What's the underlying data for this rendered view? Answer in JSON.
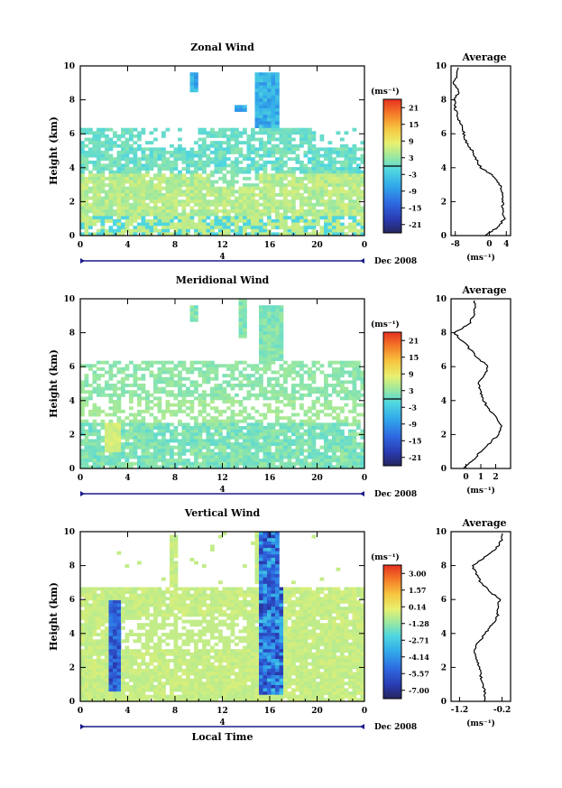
{
  "chart_data": [
    {
      "type": "heatmap",
      "title": "Zonal Wind",
      "ylabel": "Height (km)",
      "xlim": [
        0,
        24
      ],
      "ylim": [
        0,
        10
      ],
      "x_ticks": [
        "0",
        "4",
        "8",
        "12",
        "16",
        "20",
        "0"
      ],
      "y_ticks": [
        "0",
        "2",
        "4",
        "6",
        "8",
        "10"
      ],
      "date_marker": "4",
      "date_label": "Dec 2008",
      "colorbar": {
        "unit_label": "(ms⁻¹)",
        "ticks": [
          "21",
          "15",
          "9",
          "3",
          "-3",
          "-9",
          "-15",
          "-21"
        ],
        "range": [
          -24,
          24
        ],
        "zero_line_value": 0
      },
      "profile": {
        "title": "Average",
        "xlabel": "(ms⁻¹)",
        "x_ticks": [
          "-8",
          "0",
          "4"
        ],
        "y_ticks": [
          "0",
          "2",
          "4",
          "6",
          "8",
          "10"
        ],
        "xlim": [
          -9,
          5
        ],
        "heights": [
          0.0,
          0.5,
          1.0,
          1.5,
          2.0,
          2.5,
          3.0,
          3.5,
          4.0,
          4.5,
          5.0,
          5.5,
          6.0,
          6.5,
          7.0,
          7.5,
          8.0,
          8.5,
          9.0,
          9.5
        ],
        "values": [
          -1.0,
          2.0,
          3.5,
          3.0,
          3.2,
          3.0,
          2.5,
          1.0,
          -2.0,
          -3.0,
          -4.0,
          -5.5,
          -6.0,
          -6.5,
          -7.5,
          -8.0,
          -8.2,
          -7.2,
          -8.3,
          -7.5
        ]
      }
    },
    {
      "type": "heatmap",
      "title": "Meridional Wind",
      "ylabel": "Height (km)",
      "xlim": [
        0,
        24
      ],
      "ylim": [
        0,
        10
      ],
      "x_ticks": [
        "0",
        "4",
        "8",
        "12",
        "16",
        "20",
        "0"
      ],
      "y_ticks": [
        "0",
        "2",
        "4",
        "6",
        "8",
        "10"
      ],
      "date_marker": "4",
      "date_label": "Dec 2008",
      "colorbar": {
        "unit_label": "(ms⁻¹)",
        "ticks": [
          "21",
          "15",
          "9",
          "3",
          "-3",
          "-9",
          "-15",
          "-21"
        ],
        "range": [
          -24,
          24
        ],
        "zero_line_value": 0
      },
      "profile": {
        "title": "Average",
        "xlabel": "(ms⁻¹)",
        "x_ticks": [
          "0",
          "1",
          "2"
        ],
        "y_ticks": [
          "0",
          "2",
          "4",
          "6",
          "8",
          "10"
        ],
        "xlim": [
          -1,
          3
        ],
        "heights": [
          0.0,
          0.5,
          1.0,
          1.5,
          2.0,
          2.5,
          3.0,
          3.5,
          4.0,
          4.5,
          5.0,
          5.5,
          6.0,
          6.5,
          7.0,
          7.5,
          8.0,
          8.5,
          9.0,
          9.5
        ],
        "values": [
          -0.2,
          0.5,
          1.0,
          1.6,
          2.2,
          2.4,
          2.0,
          1.5,
          1.2,
          1.0,
          0.8,
          1.2,
          1.5,
          0.8,
          0.3,
          -0.2,
          -0.8,
          0.2,
          0.5,
          0.6
        ]
      }
    },
    {
      "type": "heatmap",
      "title": "Vertical Wind",
      "ylabel": "Height (km)",
      "xlabel": "Local Time",
      "xlim": [
        0,
        24
      ],
      "ylim": [
        0,
        10
      ],
      "x_ticks": [
        "0",
        "4",
        "8",
        "12",
        "16",
        "20",
        "0"
      ],
      "y_ticks": [
        "0",
        "2",
        "4",
        "6",
        "8",
        "10"
      ],
      "date_marker": "4",
      "date_label": "Dec 2008",
      "colorbar": {
        "unit_label": "(ms⁻¹)",
        "ticks": [
          "3.00",
          "1.57",
          "0.14",
          "-1.28",
          "-2.71",
          "-4.14",
          "-5.57",
          "-7.00"
        ],
        "range": [
          -7.71,
          3.71
        ]
      },
      "profile": {
        "title": "Average",
        "xlabel": "(ms⁻¹)",
        "x_ticks": [
          "-1.2",
          "-0.2"
        ],
        "y_ticks": [
          "0",
          "2",
          "4",
          "6",
          "8",
          "10"
        ],
        "xlim": [
          -1.4,
          0.0
        ],
        "heights": [
          0.0,
          0.5,
          1.0,
          1.5,
          2.0,
          2.5,
          3.0,
          3.5,
          4.0,
          4.5,
          5.0,
          5.5,
          6.0,
          6.5,
          7.0,
          7.5,
          8.0,
          8.5,
          9.0,
          9.5
        ],
        "values": [
          -0.6,
          -0.6,
          -0.65,
          -0.7,
          -0.72,
          -0.8,
          -0.85,
          -0.75,
          -0.6,
          -0.45,
          -0.3,
          -0.3,
          -0.25,
          -0.5,
          -0.7,
          -0.8,
          -0.9,
          -0.6,
          -0.35,
          -0.2
        ]
      }
    }
  ]
}
